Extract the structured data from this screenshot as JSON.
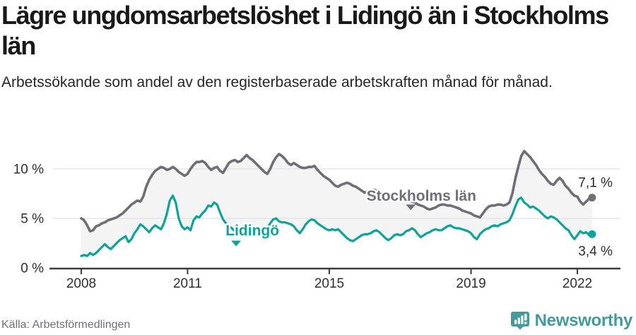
{
  "title": "Lägre ungdomsarbetslöshet i Lidingö än i Stockholms län",
  "subtitle": "Arbetssökande som andel av den registerbaserade arbetskraften månad för månad.",
  "source": "Källa: Arbetsförmedlingen",
  "brand": {
    "name": "Newsworthy",
    "color": "#459a9b",
    "icon": "bar-chart-speech-bubble-icon"
  },
  "chart_data": {
    "type": "line",
    "title": "Lägre ungdomsarbetslöshet i Lidingö än i Stockholms län",
    "ylabel": "",
    "xlabel": "",
    "grid": true,
    "legend_position": "inline-annotations",
    "colors": {
      "axis": "#3b3b40",
      "grid": "#e5e5e5",
      "tick_text": "#2f2f33",
      "end_label_text": "#2b2b2e",
      "fill_between": "#f4f4f5"
    },
    "x_axis": {
      "range": [
        2008,
        2022.55
      ],
      "ticks": [
        {
          "value": 2008,
          "label": "2008"
        },
        {
          "value": 2011,
          "label": "2011"
        },
        {
          "value": 2015,
          "label": "2015"
        },
        {
          "value": 2019,
          "label": "2019"
        },
        {
          "value": 2022,
          "label": "2022"
        }
      ]
    },
    "y_axis": {
      "range": [
        0,
        12.5
      ],
      "ticks": [
        {
          "value": 0,
          "label": "0 %"
        },
        {
          "value": 5,
          "label": "5 %"
        },
        {
          "value": 10,
          "label": "10 %"
        }
      ]
    },
    "series": [
      {
        "name": "Stockholms län",
        "color": "#6e6e77",
        "line_width": 3.6,
        "end_value": 7.1,
        "end_label": "7,1 %",
        "end_label_position": "above",
        "start_year": 2008,
        "step_months": 1,
        "values": [
          5.0,
          4.8,
          4.3,
          3.7,
          3.8,
          4.2,
          4.3,
          4.5,
          4.6,
          4.8,
          4.9,
          5.0,
          5.1,
          5.3,
          5.5,
          5.8,
          6.1,
          6.4,
          6.6,
          6.8,
          6.7,
          7.2,
          8.2,
          8.9,
          9.4,
          9.8,
          10.0,
          10.2,
          10.1,
          9.9,
          10.0,
          10.2,
          10.0,
          9.7,
          9.5,
          9.3,
          9.5,
          10.0,
          10.4,
          10.7,
          10.7,
          10.8,
          10.6,
          10.2,
          9.9,
          10.1,
          10.2,
          9.8,
          9.6,
          10.1,
          10.6,
          10.8,
          10.9,
          10.7,
          10.8,
          11.1,
          11.4,
          11.1,
          10.9,
          10.6,
          10.3,
          10.0,
          9.7,
          9.5,
          10.0,
          10.7,
          11.2,
          11.5,
          11.3,
          11.0,
          10.6,
          10.4,
          10.6,
          10.4,
          10.2,
          10.1,
          10.1,
          10.2,
          10.2,
          10.3,
          9.9,
          9.6,
          9.3,
          9.1,
          8.9,
          8.6,
          8.3,
          8.2,
          8.4,
          8.5,
          8.6,
          8.5,
          8.3,
          8.2,
          8.0,
          7.8,
          7.6,
          7.7,
          7.8,
          7.9,
          7.8,
          7.7,
          7.6,
          7.5,
          7.4,
          7.3,
          7.2,
          7.1,
          7.1,
          7.0,
          6.9,
          6.8,
          6.7,
          6.6,
          6.4,
          6.3,
          6.2,
          6.0,
          5.9,
          6.0,
          6.1,
          6.3,
          6.4,
          6.4,
          6.3,
          6.3,
          6.2,
          6.1,
          6.0,
          5.8,
          5.7,
          5.6,
          5.5,
          5.3,
          5.2,
          5.1,
          5.5,
          5.9,
          6.2,
          6.3,
          6.3,
          6.4,
          6.4,
          6.3,
          6.4,
          6.6,
          7.5,
          9.0,
          10.2,
          11.3,
          11.8,
          11.5,
          11.2,
          10.8,
          10.4,
          9.9,
          9.5,
          9.2,
          8.8,
          8.5,
          8.4,
          8.8,
          9.1,
          8.8,
          8.3,
          8.0,
          7.6,
          7.3,
          7.2,
          6.7,
          6.4,
          6.7,
          7.0,
          7.1
        ]
      },
      {
        "name": "Lidingö",
        "color": "#0ca39b",
        "line_width": 3.2,
        "end_value": 3.4,
        "end_label": "3,4 %",
        "end_label_position": "below",
        "start_year": 2008,
        "step_months": 1,
        "values": [
          1.2,
          1.3,
          1.2,
          1.5,
          1.3,
          1.5,
          1.8,
          2.1,
          2.4,
          2.1,
          1.9,
          2.2,
          2.5,
          2.8,
          3.0,
          3.2,
          2.6,
          2.9,
          3.5,
          3.9,
          4.4,
          4.2,
          3.9,
          3.6,
          4.0,
          4.3,
          4.1,
          3.9,
          4.5,
          5.5,
          6.8,
          7.3,
          6.6,
          5.0,
          4.2,
          3.9,
          4.1,
          3.8,
          4.8,
          5.2,
          5.1,
          5.5,
          5.8,
          6.3,
          6.2,
          6.6,
          6.4,
          5.6,
          4.9,
          4.5,
          4.2,
          4.0,
          3.7,
          3.6,
          3.8,
          3.9,
          3.7,
          3.6,
          3.4,
          3.3,
          3.4,
          3.6,
          3.3,
          4.0,
          4.5,
          4.9,
          5.0,
          4.7,
          4.6,
          4.6,
          4.5,
          4.4,
          4.2,
          3.8,
          3.5,
          3.9,
          4.4,
          4.7,
          4.9,
          4.8,
          4.5,
          4.3,
          4.1,
          3.9,
          3.8,
          3.9,
          3.8,
          3.9,
          3.6,
          3.3,
          3.0,
          2.8,
          2.7,
          2.9,
          3.1,
          3.3,
          3.4,
          3.4,
          3.5,
          3.7,
          3.8,
          3.6,
          3.3,
          3.0,
          2.8,
          3.0,
          3.3,
          3.4,
          3.3,
          3.4,
          3.7,
          3.8,
          4.0,
          3.8,
          3.4,
          3.1,
          3.3,
          3.5,
          3.6,
          3.8,
          3.9,
          3.8,
          3.8,
          4.0,
          4.2,
          4.3,
          4.1,
          4.0,
          4.0,
          3.9,
          3.8,
          3.7,
          3.5,
          3.1,
          2.9,
          3.4,
          3.7,
          3.9,
          4.0,
          4.2,
          4.3,
          4.2,
          4.4,
          4.5,
          4.6,
          4.8,
          5.4,
          6.2,
          6.9,
          7.1,
          6.6,
          6.4,
          6.1,
          6.2,
          6.0,
          5.8,
          5.5,
          5.2,
          5.0,
          5.2,
          5.1,
          4.9,
          4.6,
          4.3,
          4.0,
          3.8,
          3.3,
          2.9,
          3.3,
          3.7,
          3.5,
          3.6,
          3.3,
          3.4
        ]
      }
    ],
    "annotations": [
      {
        "text": "Stockholms län",
        "color": "#6e6e77",
        "x": 2017.6,
        "y": 7.3,
        "caret_x": 2017.3,
        "caret_y": 6.4
      },
      {
        "text": "Lidingö",
        "color": "#0ca39b",
        "x": 2012.83,
        "y": 3.8,
        "caret_x": 2012.37,
        "caret_y": 2.75
      }
    ]
  }
}
